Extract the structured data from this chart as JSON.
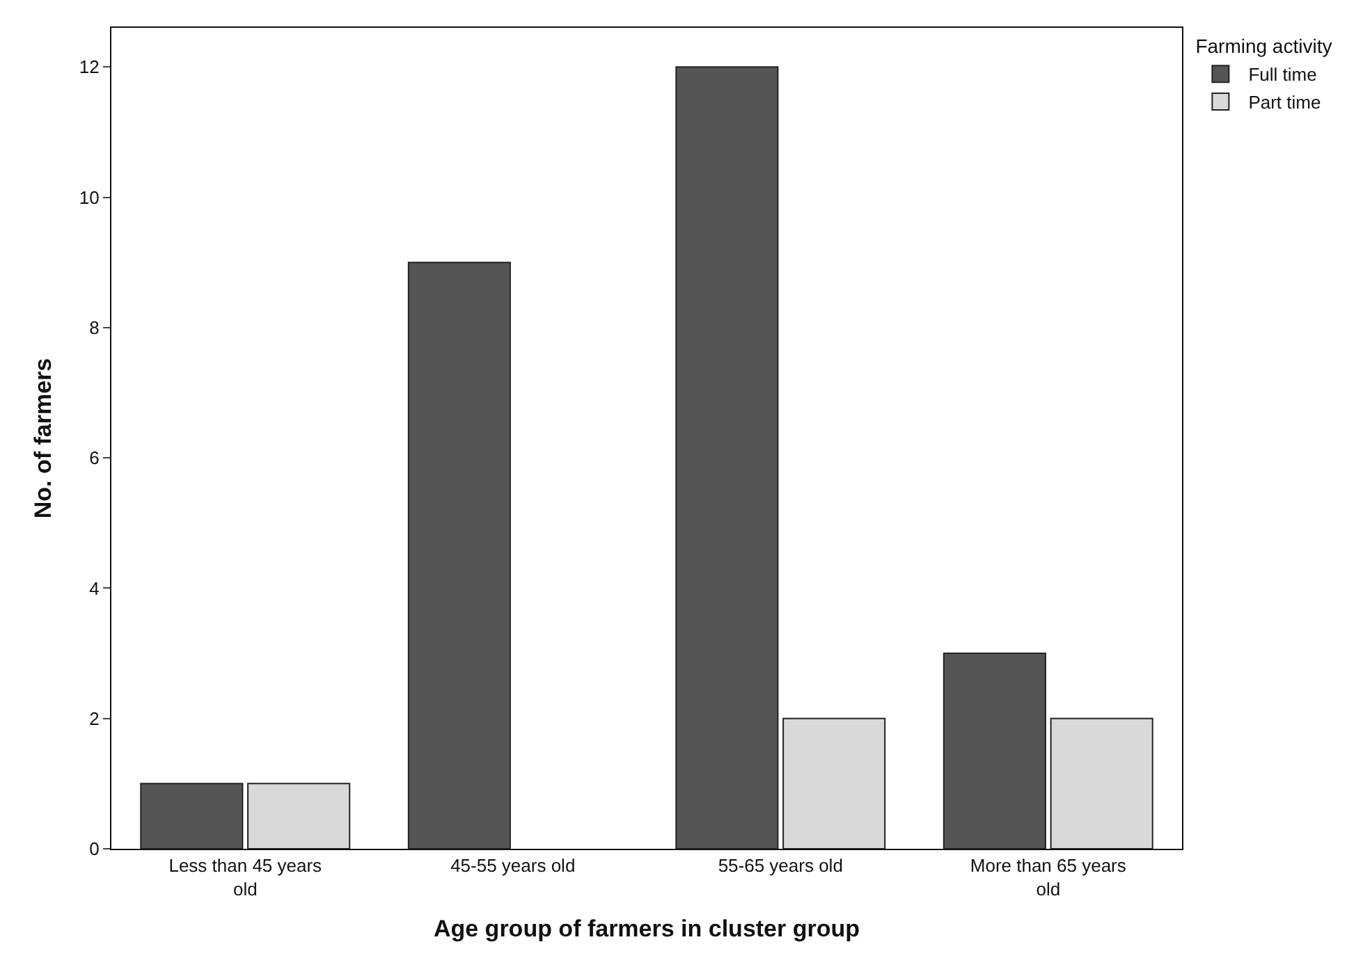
{
  "chart_data": {
    "type": "bar",
    "xlabel": "Age group of farmers in cluster group",
    "ylabel": "No. of farmers",
    "legend_title": "Farming activity",
    "categories": [
      "Less than 45 years old",
      "45-55 years old",
      "55-65 years old",
      "More than 65 years old"
    ],
    "series": [
      {
        "name": "Full time",
        "color": "#555555",
        "values": [
          1,
          9,
          12,
          3
        ]
      },
      {
        "name": "Part time",
        "color": "#d9d9d9",
        "values": [
          1,
          null,
          2,
          2
        ]
      }
    ],
    "ylim": [
      0,
      12.6
    ],
    "yticks": [
      0,
      2,
      4,
      6,
      8,
      10,
      12
    ],
    "legend": "top right"
  }
}
